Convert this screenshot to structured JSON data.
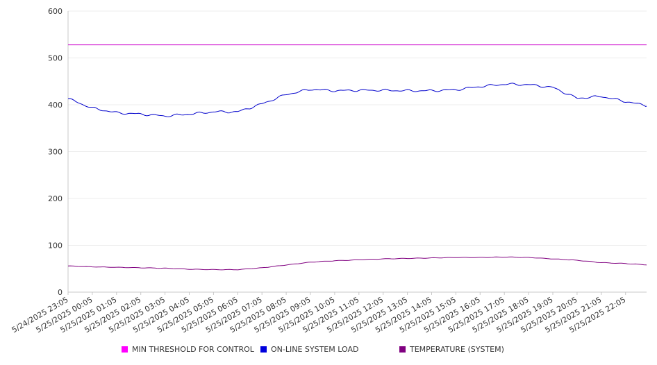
{
  "chart_data": {
    "type": "line",
    "title": "",
    "xlabel": "",
    "ylabel": "",
    "ylim": [
      0,
      600
    ],
    "y_ticks": [
      0,
      100,
      200,
      300,
      400,
      500,
      600
    ],
    "grid": true,
    "legend_position": "bottom",
    "x_tick_labels": [
      "5/24/2025 23:05",
      "5/25/2025 00:05",
      "5/25/2025 01:05",
      "5/25/2025 02:05",
      "5/25/2025 03:05",
      "5/25/2025 04:05",
      "5/25/2025 05:05",
      "5/25/2025 06:05",
      "5/25/2025 07:05",
      "5/25/2025 08:05",
      "5/25/2025 09:05",
      "5/25/2025 10:05",
      "5/25/2025 11:05",
      "5/25/2025 12:05",
      "5/25/2025 13:05",
      "5/25/2025 14:05",
      "5/25/2025 15:05",
      "5/25/2025 16:05",
      "5/25/2025 17:05",
      "5/25/2025 18:05",
      "5/25/2025 19:05",
      "5/25/2025 20:05",
      "5/25/2025 21:05",
      "5/25/2025 22:05"
    ],
    "x": [
      "5/24/2025 23:05",
      "5/25/2025 00:05",
      "5/25/2025 01:05",
      "5/25/2025 02:05",
      "5/25/2025 03:05",
      "5/25/2025 04:05",
      "5/25/2025 05:05",
      "5/25/2025 06:05",
      "5/25/2025 07:05",
      "5/25/2025 08:05",
      "5/25/2025 09:05",
      "5/25/2025 10:05",
      "5/25/2025 11:05",
      "5/25/2025 12:05",
      "5/25/2025 13:05",
      "5/25/2025 14:05",
      "5/25/2025 15:05",
      "5/25/2025 16:05",
      "5/25/2025 17:05",
      "5/25/2025 18:05",
      "5/25/2025 19:05",
      "5/25/2025 20:05",
      "5/25/2025 21:05",
      "5/25/2025 22:05"
    ],
    "x_end_value": "5/25/2025 22:55",
    "series": [
      {
        "name": "MIN THRESHOLD FOR CONTROL",
        "color": "#cc00cc",
        "values": [
          528,
          528,
          528,
          528,
          528,
          528,
          528,
          528,
          528,
          528,
          528,
          528,
          528,
          528,
          528,
          528,
          528,
          528,
          528,
          528,
          528,
          528,
          528,
          528
        ],
        "end_value": 528
      },
      {
        "name": "ON-LINE SYSTEM LOAD",
        "color": "#0000cc",
        "values": [
          413,
          393,
          383,
          380,
          376,
          380,
          385,
          385,
          402,
          422,
          433,
          430,
          431,
          431,
          430,
          430,
          432,
          439,
          444,
          443,
          437,
          414,
          418,
          407
        ],
        "end_value": 397
      },
      {
        "name": "TEMPERATURE (SYSTEM)",
        "color": "#800080",
        "values": [
          56,
          54,
          53,
          52,
          51,
          49,
          48,
          48,
          52,
          58,
          64,
          67,
          69,
          71,
          72,
          73,
          74,
          74,
          75,
          74,
          71,
          68,
          63,
          61
        ],
        "end_value": 58
      }
    ]
  }
}
